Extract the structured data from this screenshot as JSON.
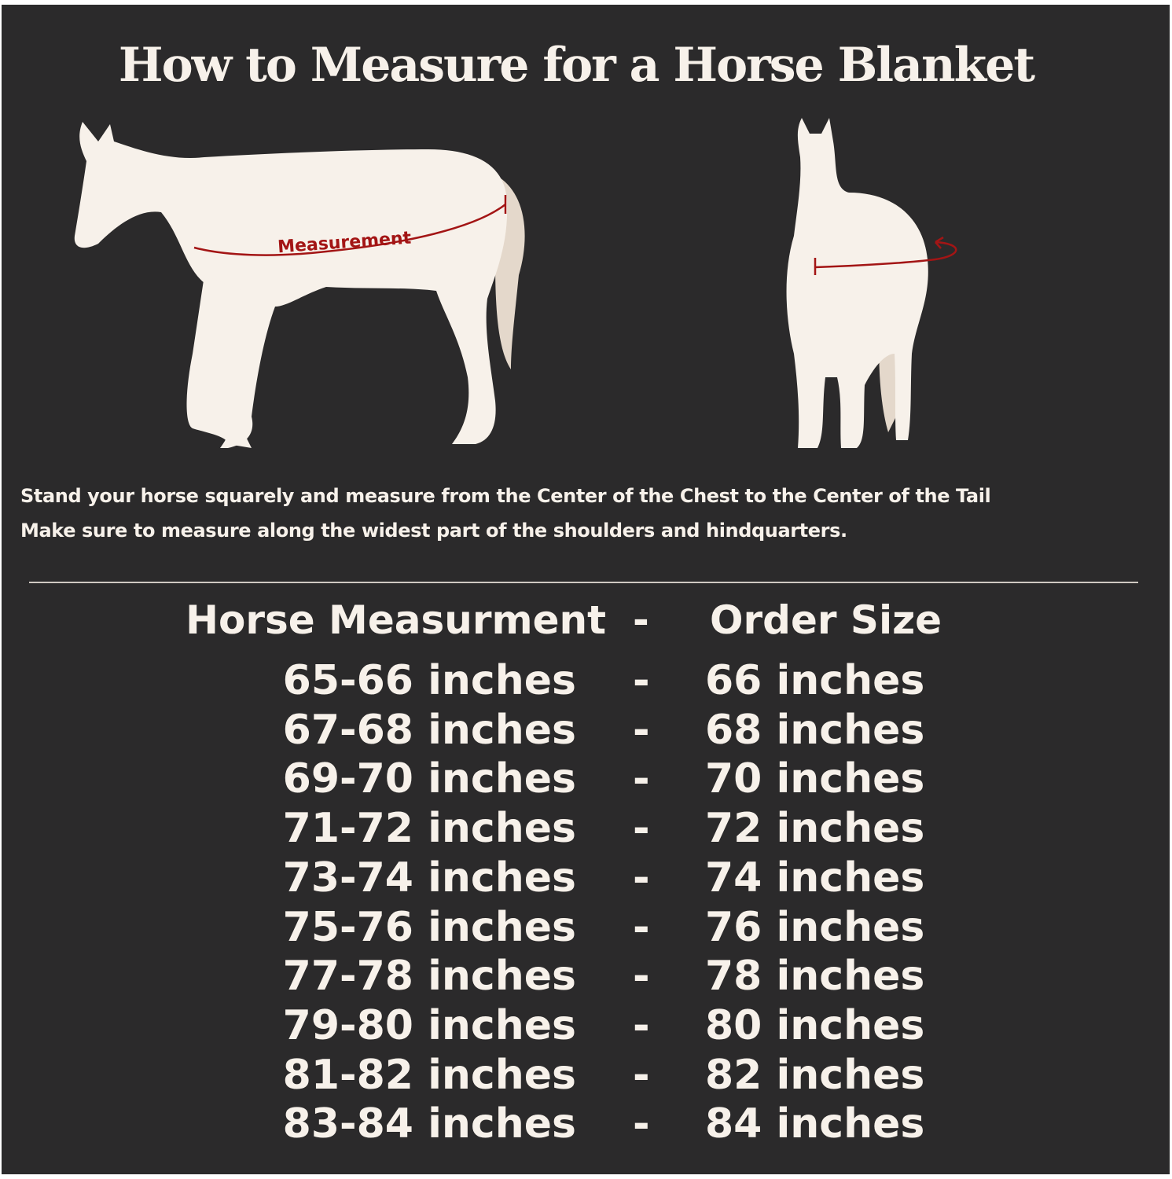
{
  "title": "How to Measure for a Horse Blanket",
  "diagram": {
    "measurement_label": "Measurement"
  },
  "instructions": [
    "Stand your horse squarely and measure from the Center of the Chest to the Center of the Tail",
    "Make sure to measure along the widest part of the shoulders and hindquarters."
  ],
  "size_table": {
    "headers": {
      "left": "Horse Measurment",
      "separator": "-",
      "right": "Order Size"
    },
    "rows": [
      {
        "measurement": "65-66 inches",
        "separator": "-",
        "size": "66 inches"
      },
      {
        "measurement": "67-68 inches",
        "separator": "-",
        "size": "68 inches"
      },
      {
        "measurement": "69-70 inches",
        "separator": "-",
        "size": "70 inches"
      },
      {
        "measurement": "71-72 inches",
        "separator": "-",
        "size": "72 inches"
      },
      {
        "measurement": "73-74 inches",
        "separator": "-",
        "size": "74 inches"
      },
      {
        "measurement": "75-76 inches",
        "separator": "-",
        "size": "76 inches"
      },
      {
        "measurement": "77-78 inches",
        "separator": "-",
        "size": "78 inches"
      },
      {
        "measurement": "79-80 inches",
        "separator": "-",
        "size": "80 inches"
      },
      {
        "measurement": "81-82 inches",
        "separator": "-",
        "size": "82 inches"
      },
      {
        "measurement": "83-84 inches",
        "separator": "-",
        "size": "84 inches"
      }
    ]
  },
  "colors": {
    "background": "#2b2a2b",
    "text": "#f7f1ea",
    "measure_line": "#a31515",
    "tail": "#e4d8cb"
  }
}
